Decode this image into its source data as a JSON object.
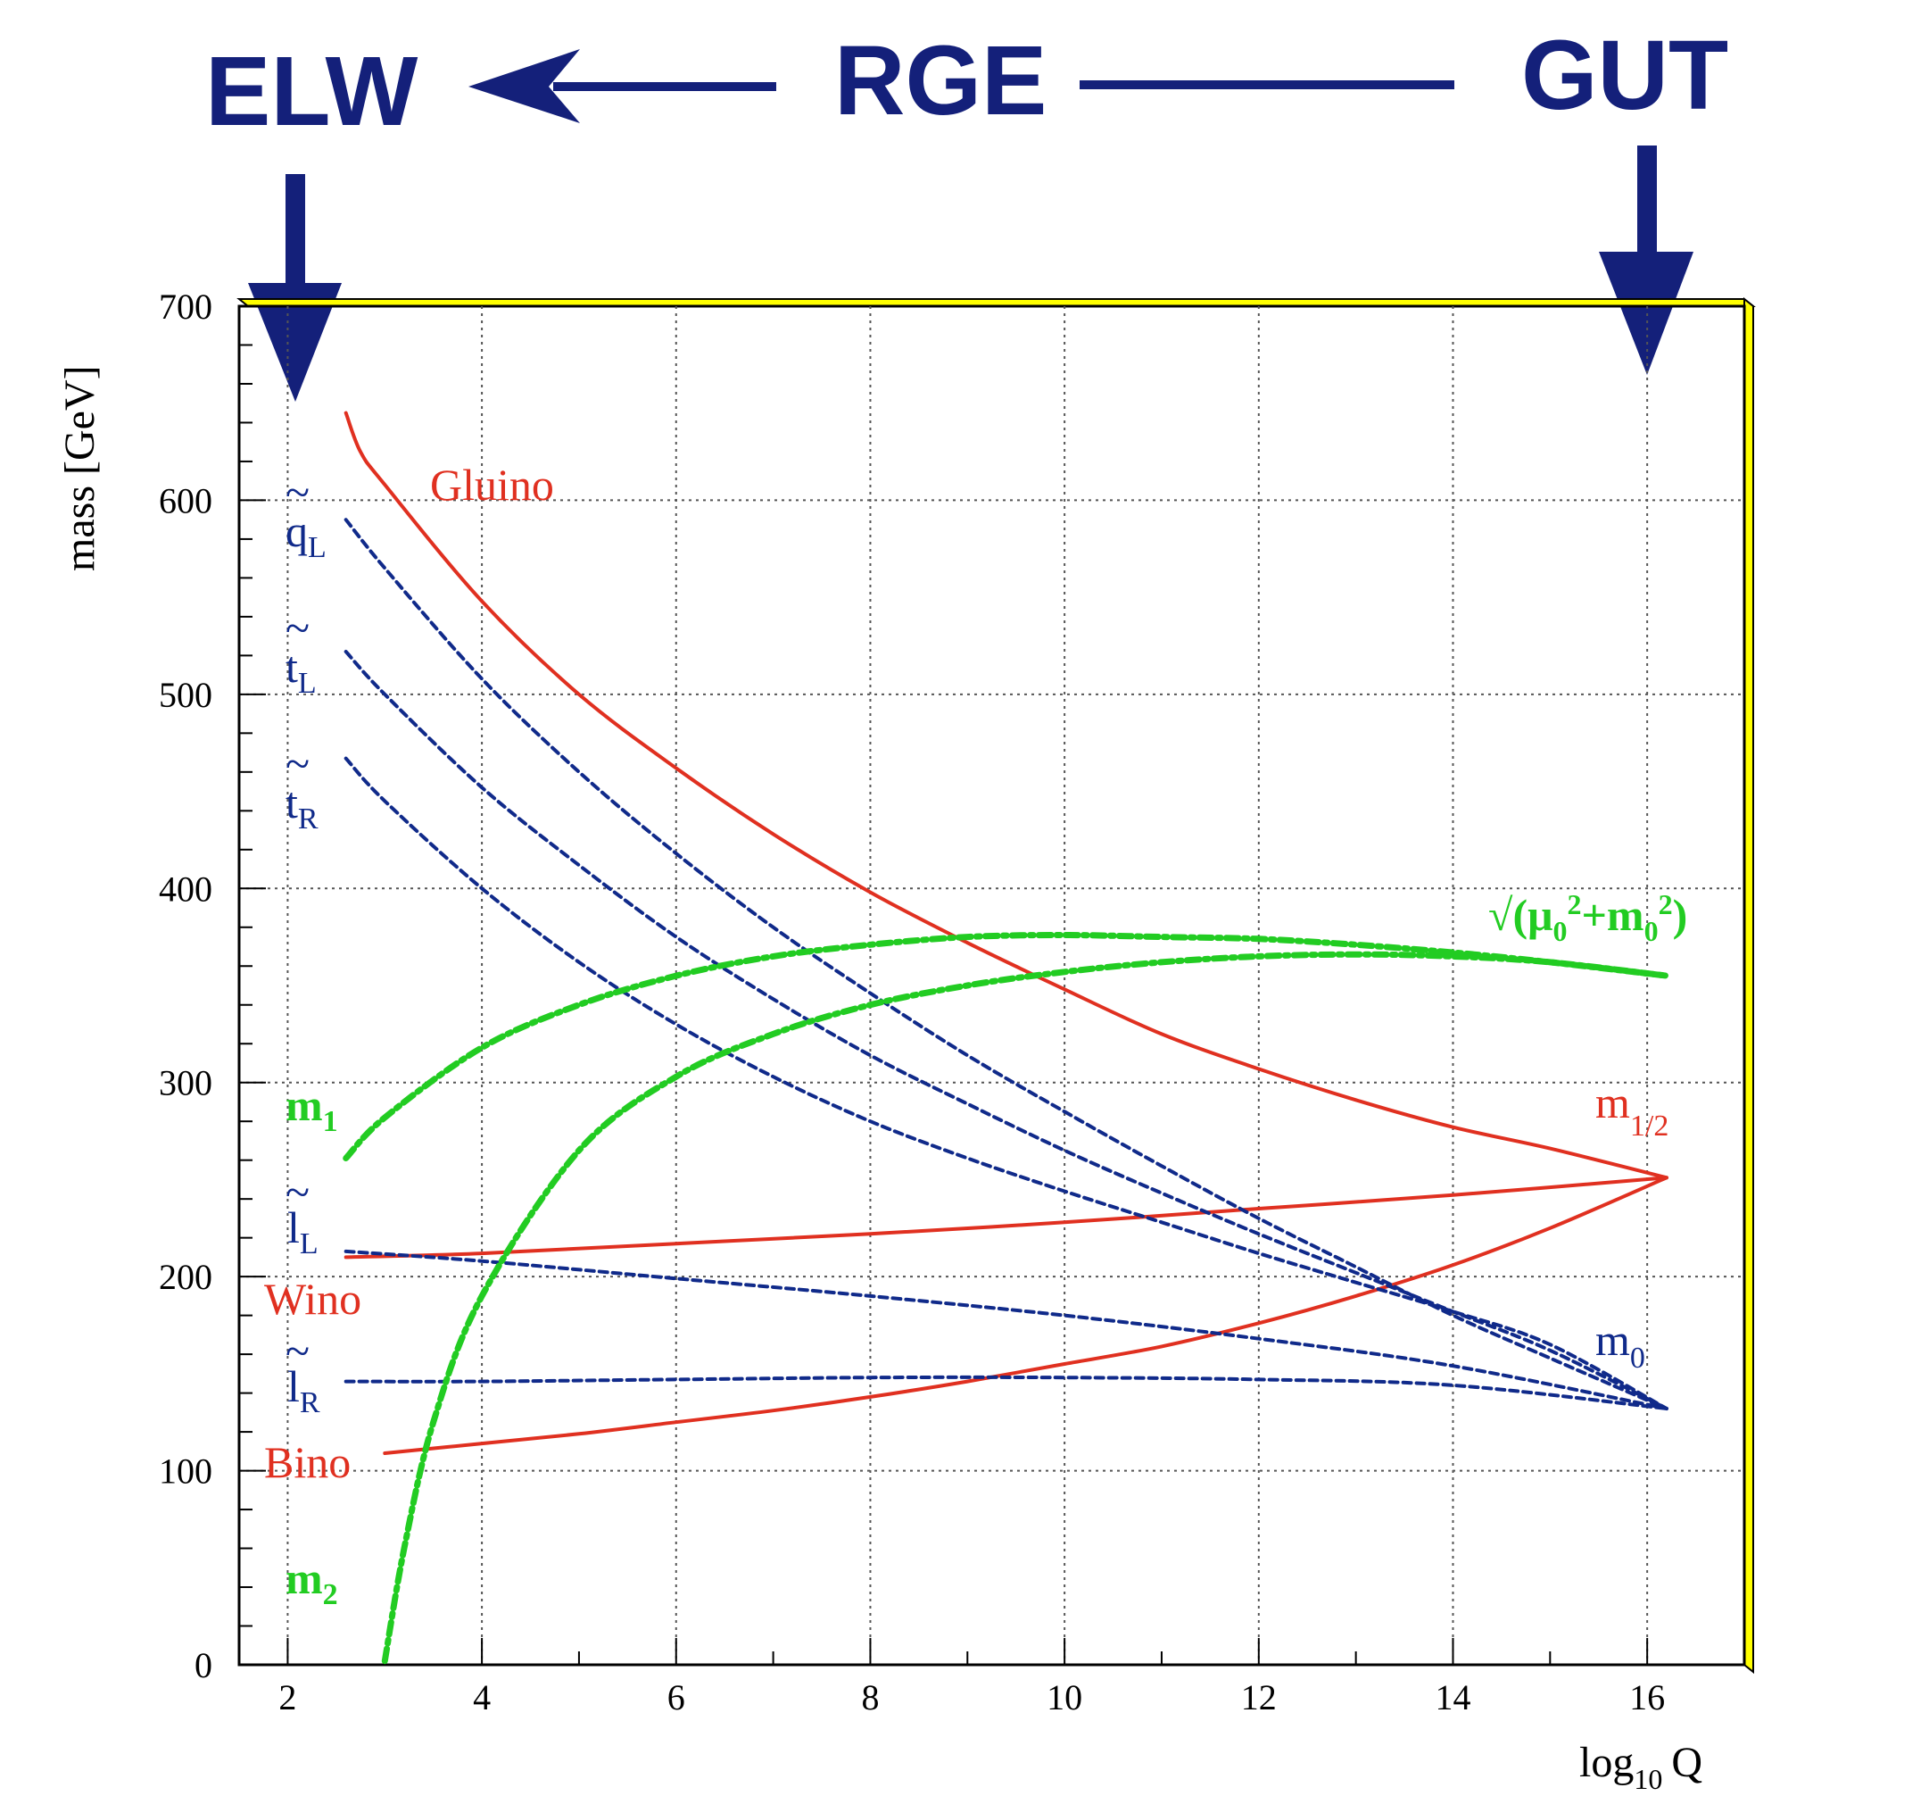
{
  "banner": {
    "left": "ELW",
    "middle": "RGE",
    "right": "GUT",
    "color": "#14207a"
  },
  "chart_data": {
    "type": "line",
    "xlabel": "log10 Q",
    "xlabel_main": "log",
    "xlabel_sub": "10",
    "xlabel_tail": "Q",
    "ylabel": "mass [GeV]",
    "xlim": [
      1.5,
      17.0
    ],
    "ylim": [
      0,
      700
    ],
    "xticks": [
      2,
      4,
      6,
      8,
      10,
      12,
      14,
      16
    ],
    "yticks": [
      0,
      100,
      200,
      300,
      400,
      500,
      600,
      700
    ],
    "grid": true,
    "frame_accent_color": "#ffff00",
    "series": [
      {
        "id": "gluino",
        "style": "solid",
        "color": "#e03020",
        "x": [
          2.6,
          2.75,
          3.0,
          4.0,
          5.0,
          6.0,
          7.0,
          8.0,
          9.0,
          10.0,
          11.0,
          12.0,
          13.0,
          14.0,
          15.0,
          16.2
        ],
        "y": [
          645,
          625,
          608,
          548,
          500,
          462,
          428,
          398,
          372,
          348,
          325,
          307,
          291,
          277,
          266,
          251
        ]
      },
      {
        "id": "wino",
        "style": "solid",
        "color": "#e03020",
        "x": [
          2.6,
          4.0,
          6.0,
          8.0,
          10.0,
          12.0,
          14.0,
          16.2
        ],
        "y": [
          210,
          212,
          217,
          222,
          228,
          235,
          242,
          251
        ]
      },
      {
        "id": "bino",
        "style": "solid",
        "color": "#e03020",
        "x": [
          3.0,
          4.0,
          5.0,
          6.0,
          7.0,
          8.0,
          9.0,
          10.0,
          11.0,
          12.0,
          13.0,
          14.0,
          15.0,
          16.2
        ],
        "y": [
          109,
          114,
          119,
          125,
          131,
          138,
          146,
          155,
          164,
          176,
          190,
          206,
          225,
          251
        ]
      },
      {
        "id": "qL",
        "style": "dashed",
        "color": "#102a8a",
        "x": [
          2.6,
          3.0,
          4.0,
          5.0,
          6.0,
          7.0,
          8.0,
          9.0,
          10.0,
          11.0,
          12.0,
          13.0,
          14.0,
          15.0,
          16.2
        ],
        "y": [
          590,
          565,
          508,
          460,
          418,
          380,
          346,
          314,
          285,
          257,
          230,
          205,
          180,
          158,
          132
        ]
      },
      {
        "id": "tL",
        "style": "dashed",
        "color": "#102a8a",
        "x": [
          2.6,
          3.0,
          4.0,
          5.0,
          6.0,
          7.0,
          8.0,
          9.0,
          10.0,
          11.0,
          12.0,
          13.0,
          14.0,
          15.0,
          16.2
        ],
        "y": [
          522,
          500,
          452,
          412,
          375,
          343,
          314,
          289,
          265,
          243,
          222,
          202,
          182,
          162,
          132
        ]
      },
      {
        "id": "tR",
        "style": "dashed",
        "color": "#102a8a",
        "x": [
          2.6,
          3.0,
          4.0,
          5.0,
          6.0,
          7.0,
          8.0,
          9.0,
          10.0,
          11.0,
          12.0,
          13.0,
          14.0,
          15.0,
          16.2
        ],
        "y": [
          467,
          445,
          400,
          362,
          330,
          303,
          280,
          261,
          244,
          228,
          212,
          197,
          182,
          165,
          132
        ]
      },
      {
        "id": "lL",
        "style": "dashed",
        "color": "#102a8a",
        "x": [
          2.6,
          4.0,
          6.0,
          8.0,
          10.0,
          12.0,
          14.0,
          16.2
        ],
        "y": [
          213,
          208,
          199,
          190,
          180,
          168,
          154,
          132
        ]
      },
      {
        "id": "lR",
        "style": "dashed",
        "color": "#102a8a",
        "x": [
          2.6,
          4.0,
          6.0,
          8.0,
          10.0,
          12.0,
          14.0,
          16.2
        ],
        "y": [
          146,
          146,
          147,
          148,
          148,
          147,
          144,
          132
        ]
      },
      {
        "id": "m1",
        "style": "dashdot",
        "color": "#22cc22",
        "x": [
          2.6,
          3.0,
          4.0,
          5.0,
          6.0,
          7.0,
          8.0,
          9.0,
          10.0,
          11.0,
          12.0,
          13.0,
          14.0,
          15.0,
          16.2
        ],
        "y": [
          261,
          282,
          318,
          340,
          355,
          365,
          371,
          375,
          376,
          375,
          374,
          371,
          367,
          362,
          355
        ]
      },
      {
        "id": "m2",
        "style": "dashdot",
        "color": "#22cc22",
        "x": [
          3.0,
          3.2,
          3.5,
          4.0,
          5.0,
          6.0,
          7.0,
          8.0,
          9.0,
          10.0,
          11.0,
          12.0,
          13.0,
          14.0,
          15.0,
          16.2
        ],
        "y": [
          2,
          60,
          125,
          190,
          265,
          303,
          325,
          340,
          350,
          357,
          362,
          365,
          366,
          365,
          362,
          355
        ]
      }
    ],
    "labels": {
      "gluino": "Gluino",
      "qL_main": "q",
      "qL_sub": "L",
      "tL_main": "t",
      "tL_sub": "L",
      "tR_main": "t",
      "tR_sub": "R",
      "m1_main": "m",
      "m1_sub": "1",
      "lL_main": "l",
      "lL_sub": "L",
      "wino": "Wino",
      "lR_main": "l",
      "lR_sub": "R",
      "bino": "Bino",
      "m2_main": "m",
      "m2_sub": "2",
      "sqrt_label": "√(μ",
      "sqrt_sub1": "0",
      "sqrt_mid1": "2",
      "sqrt_plus": "+m",
      "sqrt_sub2": "0",
      "sqrt_mid2": "2",
      "sqrt_close": ")",
      "mhalf_main": "m",
      "mhalf_sub": "1/2",
      "m0_main": "m",
      "m0_sub": "0",
      "tilde": "~"
    }
  }
}
